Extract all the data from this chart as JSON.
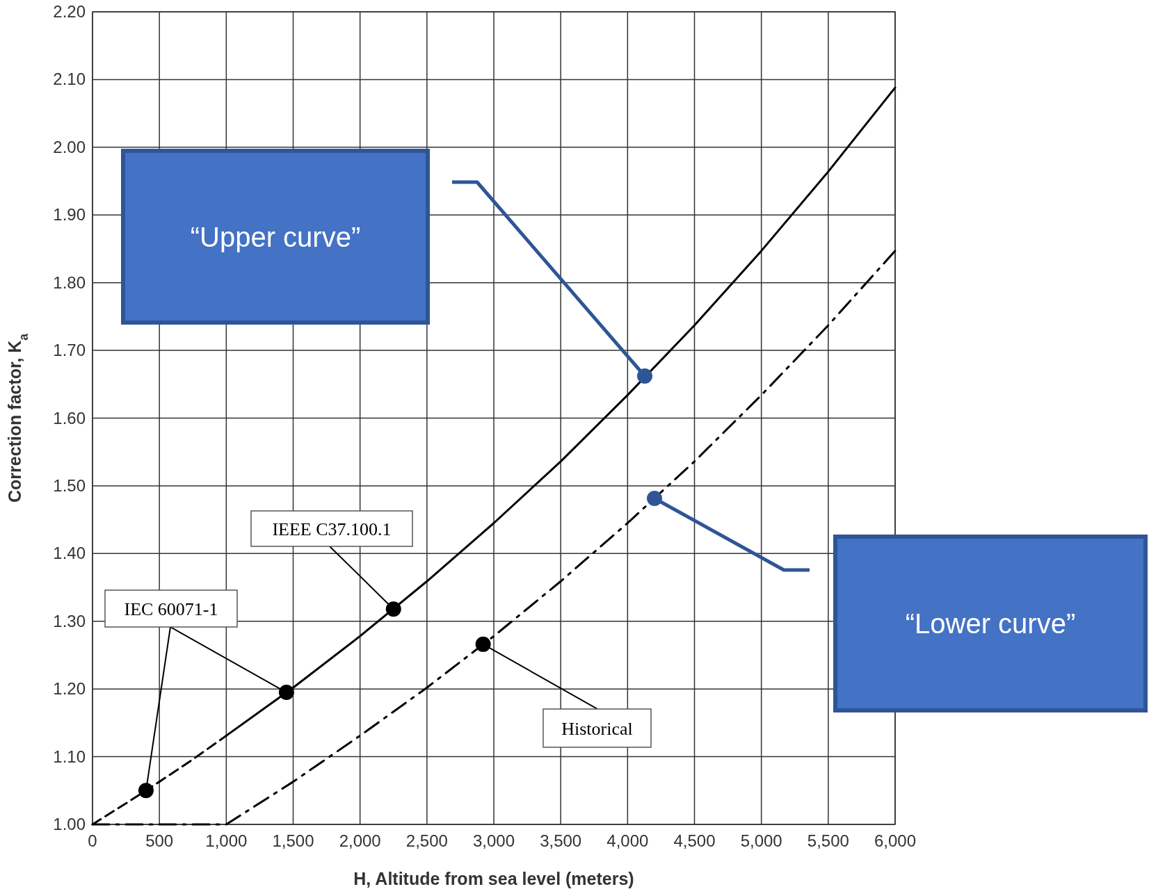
{
  "chart_data": {
    "type": "line",
    "xlabel": "H, Altitude from sea level (meters)",
    "ylabel": "Correction factor, K$_{a}$",
    "xlim": [
      0,
      6000
    ],
    "ylim": [
      1,
      2.2
    ],
    "xticks": [
      0,
      500,
      {
        "value": 1000,
        "label": "1,000"
      },
      {
        "value": 1500,
        "label": "1,500"
      },
      {
        "value": 2000,
        "label": "2,000"
      },
      {
        "value": 2500,
        "label": "2,500"
      },
      {
        "value": 3000,
        "label": "3,000"
      },
      {
        "value": 3500,
        "label": "3,500"
      },
      {
        "value": 4000,
        "label": "4,000"
      },
      {
        "value": 4500,
        "label": "4,500"
      },
      {
        "value": 5000,
        "label": "5,000"
      },
      {
        "value": 5500,
        "label": "5,500"
      },
      {
        "value": 6000,
        "label": "6,000"
      }
    ],
    "yticks": [
      {
        "value": 1,
        "label": "1.00"
      },
      {
        "value": 1.1,
        "label": "1.10"
      },
      {
        "value": 1.2,
        "label": "1.20"
      },
      {
        "value": 1.3,
        "label": "1.30"
      },
      {
        "value": 1.4,
        "label": "1.40"
      },
      {
        "value": 1.5,
        "label": "1.50"
      },
      {
        "value": 1.6,
        "label": "1.60"
      },
      {
        "value": 1.7,
        "label": "1.70"
      },
      {
        "value": 1.8,
        "label": "1.80"
      },
      {
        "value": 1.9,
        "label": "1.90"
      },
      {
        "value": 2,
        "label": "2.00"
      },
      {
        "value": 2.1,
        "label": "2.10"
      },
      {
        "value": 2.2,
        "label": "2.20"
      }
    ],
    "grid": true,
    "series": [
      {
        "color": "#000000",
        "line_style": "dashed",
        "marker": "none",
        "x": [
          0,
          250,
          500,
          750,
          1000
        ],
        "values": [
          1,
          1.031,
          1.063,
          1.096,
          1.131
        ]
      },
      {
        "color": "#000000",
        "line_style": "solid",
        "marker": "none",
        "x": [
          1000,
          1500,
          2000,
          2500,
          3000,
          3500,
          4000,
          4500,
          5000,
          5500,
          6000
        ],
        "values": [
          1.131,
          1.202,
          1.278,
          1.359,
          1.445,
          1.536,
          1.634,
          1.737,
          1.847,
          1.964,
          2.088
        ]
      },
      {
        "color": "#000000",
        "line_style": "dashed",
        "marker": "none",
        "x": [
          0,
          1000,
          1500,
          2000,
          2500,
          3000,
          3500,
          4000,
          4500,
          5000,
          5500,
          6000
        ],
        "values": [
          1,
          1,
          1.063,
          1.131,
          1.202,
          1.278,
          1.359,
          1.445,
          1.536,
          1.634,
          1.737,
          1.847
        ]
      },
      {
        "type": "scatter",
        "color": "#000000",
        "marker": "circle",
        "x": [
          400,
          1450,
          2250,
          2920
        ],
        "values": [
          1.05,
          1.195,
          1.318,
          1.266
        ]
      }
    ],
    "annotations": [
      {
        "text": "IEC 60071-1",
        "x": 1450,
        "y": 1.195
      },
      {
        "text": "IEEE C37.100.1",
        "x": 2250,
        "y": 1.318
      },
      {
        "text": "Historical",
        "x": 2920,
        "y": 1.266
      },
      "“Upper curve”",
      "“Lower curve”"
    ]
  }
}
